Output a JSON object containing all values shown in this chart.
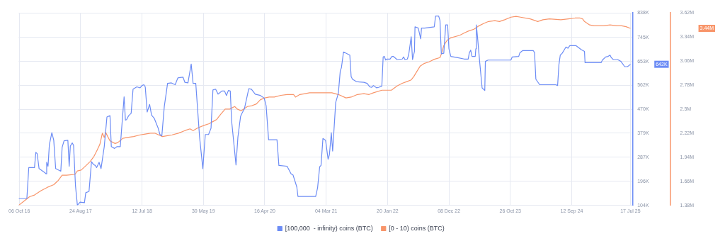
{
  "chart_data": {
    "type": "line",
    "legend": "bottom",
    "grid": true,
    "marker": "none",
    "line_style": "solid",
    "xlim": [
      "2016-10-03",
      "2025-07-31"
    ],
    "xticks": [
      {
        "value": "2016-10-06",
        "label": "06 Oct 16"
      },
      {
        "value": "2017-08-24",
        "label": "24 Aug 17"
      },
      {
        "value": "2018-07-12",
        "label": "12 Jul 18"
      },
      {
        "value": "2019-05-30",
        "label": "30 May 19"
      },
      {
        "value": "2020-04-16",
        "label": "16 Apr 20"
      },
      {
        "value": "2021-03-04",
        "label": "04 Mar 21"
      },
      {
        "value": "2022-01-20",
        "label": "20 Jan 22"
      },
      {
        "value": "2022-12-08",
        "label": "08 Dec 22"
      },
      {
        "value": "2023-10-26",
        "label": "26 Oct 23"
      },
      {
        "value": "2024-09-12",
        "label": "12 Sep 24"
      },
      {
        "value": "2025-07-17",
        "label": "17 Jul 25"
      }
    ],
    "ylim": [
      104,
      838
    ],
    "yticks": [
      {
        "value": 104,
        "label": "104K"
      },
      {
        "value": 196,
        "label": "196K"
      },
      {
        "value": 287,
        "label": "287K"
      },
      {
        "value": 379,
        "label": "379K"
      },
      {
        "value": 470,
        "label": "470K"
      },
      {
        "value": 562,
        "label": "562K"
      },
      {
        "value": 653,
        "label": "653K"
      },
      {
        "value": 745,
        "label": "745K"
      },
      {
        "value": 838,
        "label": "838K"
      }
    ],
    "y2lim": [
      1.38,
      3.62
    ],
    "y2ticks": [
      {
        "value": 1.38,
        "label": "1.38M"
      },
      {
        "value": 1.66,
        "label": "1.66M"
      },
      {
        "value": 1.94,
        "label": "1.94M"
      },
      {
        "value": 2.22,
        "label": "2.22M"
      },
      {
        "value": 2.5,
        "label": "2.5M"
      },
      {
        "value": 2.78,
        "label": "2.78M"
      },
      {
        "value": 3.06,
        "label": "3.06M"
      },
      {
        "value": 3.34,
        "label": "3.34M"
      },
      {
        "value": 3.62,
        "label": "3.62M"
      }
    ],
    "annotations": [
      "642K",
      "3.44M"
    ],
    "series": [
      {
        "name": "[100,000  - infinity) coins (BTC)",
        "color": "#6c8cf5",
        "axis": "y",
        "x": [
          "2016-10-03",
          "2016-11-15",
          "2016-11-25",
          "2016-12-25",
          "2017-01-01",
          "2017-01-08",
          "2017-01-18",
          "2017-02-17",
          "2017-02-24",
          "2017-02-27",
          "2017-03-06",
          "2017-03-13",
          "2017-03-26",
          "2017-04-05",
          "2017-04-15",
          "2017-05-12",
          "2017-05-19",
          "2017-05-29",
          "2017-06-18",
          "2017-06-25",
          "2017-07-01",
          "2017-07-11",
          "2017-07-18",
          "2017-07-28",
          "2017-08-07",
          "2017-08-21",
          "2017-09-13",
          "2017-09-20",
          "2017-10-07",
          "2017-10-20",
          "2017-10-30",
          "2017-11-09",
          "2017-11-16",
          "2017-11-29",
          "2017-12-09",
          "2017-12-26",
          "2018-01-09",
          "2018-01-25",
          "2018-02-01",
          "2018-02-18",
          "2018-03-03",
          "2018-03-20",
          "2018-04-09",
          "2018-04-16",
          "2018-04-22",
          "2018-05-03",
          "2018-05-16",
          "2018-05-26",
          "2018-06-15",
          "2018-07-02",
          "2018-07-12",
          "2018-07-22",
          "2018-07-29",
          "2018-08-08",
          "2018-08-21",
          "2018-08-31",
          "2018-09-14",
          "2018-10-04",
          "2018-10-14",
          "2018-10-24",
          "2018-11-06",
          "2018-11-16",
          "2018-11-23",
          "2018-12-13",
          "2019-01-02",
          "2019-01-16",
          "2019-02-12",
          "2019-02-22",
          "2019-03-10",
          "2019-03-27",
          "2019-04-06",
          "2019-04-20",
          "2019-05-10",
          "2019-05-27",
          "2019-06-09",
          "2019-06-26",
          "2019-07-09",
          "2019-07-19",
          "2019-08-02",
          "2019-08-15",
          "2019-09-04",
          "2019-09-18",
          "2019-09-28",
          "2019-10-08",
          "2019-10-18",
          "2019-10-25",
          "2019-11-17",
          "2019-11-27",
          "2019-12-11",
          "2019-12-17",
          "2019-12-31",
          "2020-01-23",
          "2020-02-06",
          "2020-02-26",
          "2020-03-24",
          "2020-04-13",
          "2020-04-23",
          "2020-05-06",
          "2020-06-19",
          "2020-06-29",
          "2020-08-11",
          "2020-09-01",
          "2020-09-11",
          "2020-10-01",
          "2020-10-07",
          "2021-01-08",
          "2021-01-18",
          "2021-01-29",
          "2021-02-05",
          "2021-02-15",
          "2021-03-01",
          "2021-03-14",
          "2021-03-21",
          "2021-03-31",
          "2021-04-07",
          "2021-04-23",
          "2021-05-07",
          "2021-05-17",
          "2021-05-23",
          "2021-06-03",
          "2021-07-06",
          "2021-07-13",
          "2021-07-20",
          "2021-08-09",
          "2021-09-18",
          "2021-10-05",
          "2021-10-18",
          "2021-10-28",
          "2021-11-07",
          "2021-11-24",
          "2021-12-04",
          "2021-12-21",
          "2021-12-28",
          "2022-01-03",
          "2022-01-10",
          "2022-01-17",
          "2022-02-02",
          "2022-02-12",
          "2022-02-19",
          "2022-03-11",
          "2022-04-07",
          "2022-04-14",
          "2022-04-21",
          "2022-05-04",
          "2022-05-11",
          "2022-05-24",
          "2022-05-31",
          "2022-06-10",
          "2022-06-13",
          "2022-06-30",
          "2022-07-13",
          "2022-07-17",
          "2022-08-03",
          "2022-09-22",
          "2022-09-29",
          "2022-10-15",
          "2022-10-22",
          "2022-10-29",
          "2022-11-11",
          "2022-11-21",
          "2022-12-01",
          "2022-12-08",
          "2022-12-18",
          "2023-01-24",
          "2023-02-26",
          "2023-03-19",
          "2023-03-25",
          "2023-04-01",
          "2023-04-08",
          "2023-04-25",
          "2023-04-28",
          "2023-05-01",
          "2023-05-08",
          "2023-05-18",
          "2023-05-31",
          "2023-06-14",
          "2023-06-17",
          "2023-07-01",
          "2023-10-29",
          "2023-11-05",
          "2023-12-09",
          "2023-12-15",
          "2023-12-29",
          "2024-02-24",
          "2024-03-01",
          "2024-03-08",
          "2024-03-28",
          "2024-06-20",
          "2024-06-30",
          "2024-07-07",
          "2024-07-14",
          "2024-07-24",
          "2024-08-03",
          "2024-08-13",
          "2024-08-23",
          "2024-09-02",
          "2024-10-05",
          "2024-11-01",
          "2024-11-18",
          "2024-11-21",
          "2025-02-13",
          "2025-02-20",
          "2025-03-09",
          "2025-03-22",
          "2025-04-01",
          "2025-04-08",
          "2025-04-18",
          "2025-05-11",
          "2025-05-28",
          "2025-06-17",
          "2025-07-01",
          "2025-07-11",
          "2025-07-17"
        ],
        "values": [
          130,
          130,
          248,
          248,
          306,
          301,
          244,
          229,
          224,
          268,
          253,
          335,
          381,
          352,
          244,
          234,
          325,
          350,
          352,
          253,
          330,
          342,
          333,
          179,
          104,
          116,
          114,
          152,
          157,
          270,
          260,
          256,
          248,
          268,
          244,
          328,
          441,
          446,
          328,
          321,
          328,
          328,
          518,
          429,
          431,
          446,
          455,
          547,
          556,
          552,
          561,
          564,
          556,
          460,
          489,
          448,
          436,
          400,
          374,
          369,
          482,
          532,
          569,
          571,
          564,
          590,
          593,
          573,
          571,
          643,
          569,
          569,
          364,
          244,
          374,
          374,
          398,
          544,
          547,
          528,
          540,
          540,
          523,
          542,
          540,
          426,
          258,
          364,
          443,
          453,
          472,
          549,
          547,
          528,
          523,
          513,
          484,
          354,
          354,
          256,
          253,
          224,
          220,
          174,
          138,
          138,
          171,
          251,
          256,
          359,
          352,
          280,
          297,
          381,
          311,
          496,
          532,
          617,
          629,
          689,
          677,
          595,
          585,
          576,
          573,
          569,
          556,
          554,
          561,
          552,
          554,
          559,
          670,
          672,
          658,
          662,
          662,
          672,
          672,
          660,
          662,
          670,
          660,
          662,
          679,
          747,
          660,
          691,
          785,
          780,
          739,
          780,
          780,
          785,
          826,
          826,
          809,
          682,
          684,
          792,
          792,
          701,
          672,
          667,
          662,
          662,
          686,
          696,
          672,
          672,
          701,
          792,
          737,
          653,
          552,
          542,
          653,
          658,
          658,
          670,
          672,
          686,
          694,
          694,
          686,
          585,
          564,
          564,
          561,
          641,
          677,
          684,
          696,
          708,
          703,
          713,
          713,
          698,
          691,
          648,
          648,
          658,
          670,
          672,
          677,
          667,
          660,
          660,
          653,
          633,
          633,
          638,
          642
        ]
      },
      {
        "name": "[0 - 10) coins (BTC)",
        "color": "#f8956a",
        "axis": "y2",
        "x": [
          "2016-10-03",
          "2016-10-26",
          "2016-11-29",
          "2016-12-25",
          "2017-01-28",
          "2017-03-03",
          "2017-04-05",
          "2017-04-29",
          "2017-05-19",
          "2017-06-11",
          "2017-07-25",
          "2017-08-07",
          "2017-08-27",
          "2017-09-20",
          "2017-10-13",
          "2017-11-02",
          "2017-11-16",
          "2017-12-03",
          "2017-12-16",
          "2017-12-26",
          "2018-01-02",
          "2018-01-25",
          "2018-02-11",
          "2018-02-21",
          "2018-03-07",
          "2018-04-02",
          "2018-04-26",
          "2018-05-29",
          "2018-07-02",
          "2018-07-29",
          "2018-08-25",
          "2018-09-17",
          "2018-10-07",
          "2018-10-27",
          "2018-11-23",
          "2018-12-17",
          "2019-01-19",
          "2019-02-22",
          "2019-03-21",
          "2019-04-06",
          "2019-04-30",
          "2019-06-02",
          "2019-06-29",
          "2019-07-23",
          "2019-08-08",
          "2019-08-29",
          "2019-09-21",
          "2019-10-15",
          "2019-11-10",
          "2019-11-24",
          "2019-12-14",
          "2020-01-16",
          "2020-02-09",
          "2020-03-03",
          "2020-03-24",
          "2020-04-16",
          "2020-05-09",
          "2020-06-05",
          "2020-07-09",
          "2020-08-11",
          "2020-09-14",
          "2020-09-24",
          "2020-10-17",
          "2020-11-13",
          "2020-12-07",
          "2021-01-09",
          "2021-02-11",
          "2021-04-03",
          "2021-05-07",
          "2021-06-16",
          "2021-07-13",
          "2021-08-15",
          "2021-09-18",
          "2021-10-15",
          "2021-11-07",
          "2021-12-21",
          "2022-01-20",
          "2022-02-09",
          "2022-03-11",
          "2022-04-07",
          "2022-05-01",
          "2022-05-24",
          "2022-06-07",
          "2022-06-23",
          "2022-07-10",
          "2022-07-30",
          "2022-08-26",
          "2022-09-22",
          "2022-10-22",
          "2022-10-29",
          "2022-11-11",
          "2022-11-28",
          "2022-12-18",
          "2023-02-03",
          "2023-03-02",
          "2023-03-22",
          "2023-04-18",
          "2023-05-15",
          "2023-06-11",
          "2023-07-04",
          "2023-08-06",
          "2023-08-30",
          "2023-09-26",
          "2023-10-29",
          "2023-11-25",
          "2023-12-19",
          "2024-02-07",
          "2024-03-05",
          "2024-03-18",
          "2024-04-14",
          "2024-05-18",
          "2024-07-17",
          "2024-08-26",
          "2024-09-29",
          "2024-10-26",
          "2024-11-08",
          "2024-11-18",
          "2024-12-15",
          "2025-01-07",
          "2025-02-27",
          "2025-04-01",
          "2025-05-05",
          "2025-06-01",
          "2025-06-24",
          "2025-07-17"
        ],
        "values": [
          1.38,
          1.42,
          1.48,
          1.5,
          1.55,
          1.59,
          1.62,
          1.67,
          1.73,
          1.73,
          1.74,
          1.78,
          1.79,
          1.84,
          1.89,
          1.95,
          2.01,
          2.09,
          2.22,
          2.17,
          2.23,
          2.13,
          2.11,
          2.1,
          2.11,
          2.16,
          2.17,
          2.18,
          2.2,
          2.21,
          2.22,
          2.22,
          2.2,
          2.18,
          2.19,
          2.2,
          2.22,
          2.25,
          2.27,
          2.25,
          2.28,
          2.31,
          2.33,
          2.36,
          2.38,
          2.44,
          2.5,
          2.5,
          2.53,
          2.5,
          2.48,
          2.53,
          2.54,
          2.56,
          2.61,
          2.63,
          2.64,
          2.64,
          2.66,
          2.67,
          2.67,
          2.64,
          2.67,
          2.68,
          2.69,
          2.69,
          2.69,
          2.69,
          2.67,
          2.63,
          2.64,
          2.67,
          2.68,
          2.67,
          2.69,
          2.72,
          2.72,
          2.72,
          2.77,
          2.8,
          2.82,
          2.84,
          2.88,
          2.94,
          3.0,
          3.03,
          3.05,
          3.08,
          3.1,
          3.14,
          3.24,
          3.3,
          3.33,
          3.36,
          3.39,
          3.41,
          3.43,
          3.47,
          3.5,
          3.52,
          3.53,
          3.52,
          3.54,
          3.57,
          3.58,
          3.57,
          3.55,
          3.53,
          3.52,
          3.54,
          3.55,
          3.54,
          3.55,
          3.56,
          3.56,
          3.55,
          3.52,
          3.48,
          3.47,
          3.47,
          3.48,
          3.47,
          3.47,
          3.46,
          3.44
        ]
      }
    ]
  }
}
